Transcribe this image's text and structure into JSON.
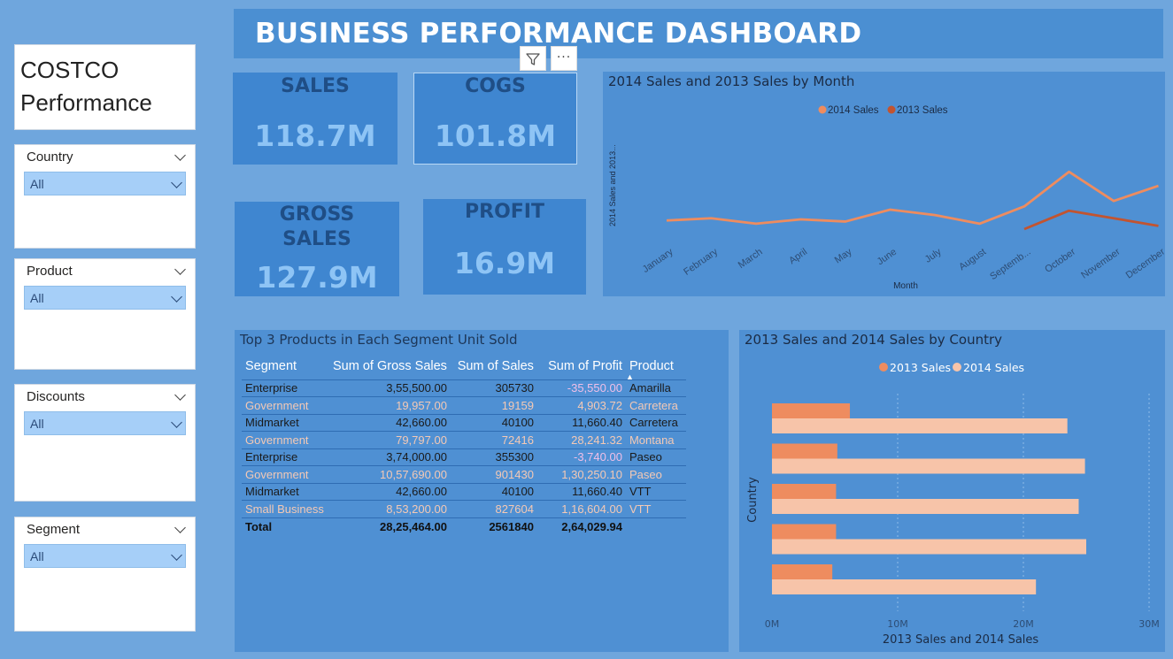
{
  "dashboard_title": "BUSINESS PERFORMANCE DASHBOARD",
  "brand": {
    "line1": "COSTCO",
    "line2": "Performance"
  },
  "slicers": [
    {
      "label": "Country",
      "value": "All"
    },
    {
      "label": "Product",
      "value": "All"
    },
    {
      "label": "Discounts",
      "value": "All"
    },
    {
      "label": "Segment",
      "value": "All"
    }
  ],
  "kpis": {
    "sales": {
      "label": "SALES",
      "value": "118.7M"
    },
    "cogs": {
      "label": "COGS",
      "value": "101.8M"
    },
    "gross_sales": {
      "label_line1": "GROSS",
      "label_line2": "SALES",
      "value": "127.9M"
    },
    "profit": {
      "label": "PROFIT",
      "value": "16.9M"
    }
  },
  "visual_toolbar": {
    "filter_icon": "filter-icon",
    "more_icon": "more-options-icon",
    "more_glyph": "···"
  },
  "line_chart": {
    "title": "2014 Sales and 2013 Sales by Month",
    "legend": [
      "2014 Sales",
      "2013 Sales"
    ],
    "ylabel": "2014 Sales and 2013...",
    "xlabel": "Month",
    "colors": {
      "2014 Sales": "#ee8c5f",
      "2013 Sales": "#c25430"
    }
  },
  "table": {
    "title": "Top 3 Products in Each Segment Unit Sold",
    "columns": [
      "Segment",
      "Sum of Gross Sales",
      "Sum of Sales",
      "Sum of Profit",
      "Product"
    ],
    "sort_indicator": "▲",
    "rows": [
      [
        "Enterprise",
        "3,55,500.00",
        "305730",
        "-35,550.00",
        "Amarilla"
      ],
      [
        "Government",
        "19,957.00",
        "19159",
        "4,903.72",
        "Carretera"
      ],
      [
        "Midmarket",
        "42,660.00",
        "40100",
        "11,660.40",
        "Carretera"
      ],
      [
        "Government",
        "79,797.00",
        "72416",
        "28,241.32",
        "Montana"
      ],
      [
        "Enterprise",
        "3,74,000.00",
        "355300",
        "-3,740.00",
        "Paseo"
      ],
      [
        "Government",
        "10,57,690.00",
        "901430",
        "1,30,250.10",
        "Paseo"
      ],
      [
        "Midmarket",
        "42,660.00",
        "40100",
        "11,660.40",
        "VTT"
      ],
      [
        "Small Business",
        "8,53,200.00",
        "827604",
        "1,16,604.00",
        "VTT"
      ]
    ],
    "total": [
      "Total",
      "28,25,464.00",
      "2561840",
      "2,64,029.94",
      ""
    ]
  },
  "bar_chart": {
    "title": "2013 Sales and 2014 Sales by Country",
    "legend": [
      "2013 Sales",
      "2014 Sales"
    ],
    "ylabel": "Country",
    "xlabel": "2013 Sales and 2014 Sales",
    "colors": {
      "2013 Sales": "#ee8c5f",
      "2014 Sales": "#f7c4a9"
    }
  },
  "chart_data": [
    {
      "type": "line",
      "title": "2014 Sales and 2013 Sales by Month",
      "xlabel": "Month",
      "ylabel": "2014 Sales and 2013...",
      "categories": [
        "January",
        "February",
        "March",
        "April",
        "May",
        "June",
        "July",
        "August",
        "Septemb...",
        "October",
        "November",
        "December"
      ],
      "ylim": [
        0,
        14
      ],
      "series": [
        {
          "name": "2014 Sales",
          "values": [
            6.6,
            6.8,
            6.3,
            6.7,
            6.5,
            7.6,
            7.1,
            6.3,
            7.9,
            11.1,
            8.4,
            9.8
          ]
        },
        {
          "name": "2013 Sales",
          "values": [
            null,
            null,
            null,
            null,
            null,
            null,
            null,
            null,
            5.8,
            7.5,
            6.8,
            6.1
          ]
        }
      ],
      "legend": "top-center"
    },
    {
      "type": "bar",
      "orientation": "horizontal",
      "title": "2013 Sales and 2014 Sales by Country",
      "xlabel": "2013 Sales and 2014 Sales",
      "ylabel": "Country",
      "categories": [
        "",
        "",
        "",
        "",
        ""
      ],
      "x_ticks": [
        "0M",
        "10M",
        "20M",
        "30M"
      ],
      "xlim": [
        0,
        30
      ],
      "series": [
        {
          "name": "2013 Sales",
          "values": [
            6.2,
            5.2,
            5.1,
            5.1,
            4.8
          ]
        },
        {
          "name": "2014 Sales",
          "values": [
            23.5,
            24.9,
            24.4,
            25.0,
            21.0
          ]
        }
      ],
      "legend": "top-center"
    }
  ]
}
